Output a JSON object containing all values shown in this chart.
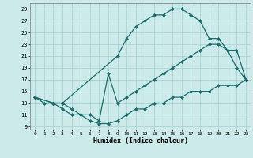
{
  "xlabel": "Humidex (Indice chaleur)",
  "bg_color": "#cceaea",
  "grid_color": "#aad4d4",
  "line_color": "#1a6b6b",
  "xlim": [
    -0.5,
    23.5
  ],
  "ylim": [
    8.5,
    30.0
  ],
  "xticks": [
    0,
    1,
    2,
    3,
    4,
    5,
    6,
    7,
    8,
    9,
    10,
    11,
    12,
    13,
    14,
    15,
    16,
    17,
    18,
    19,
    20,
    21,
    22,
    23
  ],
  "yticks": [
    9,
    11,
    13,
    15,
    17,
    19,
    21,
    23,
    25,
    27,
    29
  ],
  "line1_x": [
    0,
    1,
    2,
    3,
    9,
    10,
    11,
    12,
    13,
    14,
    15,
    16,
    17,
    18,
    19,
    20,
    21,
    22,
    23
  ],
  "line1_y": [
    14,
    13,
    13,
    13,
    21,
    24,
    26,
    27,
    28,
    28,
    29,
    29,
    28,
    27,
    24,
    24,
    22,
    19,
    17
  ],
  "line2_x": [
    0,
    2,
    3,
    4,
    5,
    6,
    7,
    8,
    9,
    10,
    11,
    12,
    13,
    14,
    15,
    16,
    17,
    18,
    19,
    20,
    21,
    22,
    23
  ],
  "line2_y": [
    14,
    13,
    13,
    12,
    11,
    11,
    10,
    18,
    13,
    14,
    15,
    16,
    17,
    18,
    19,
    20,
    21,
    22,
    23,
    23,
    22,
    22,
    17
  ],
  "line3_x": [
    0,
    2,
    3,
    4,
    5,
    6,
    7,
    8,
    9,
    10,
    11,
    12,
    13,
    14,
    15,
    16,
    17,
    18,
    19,
    20,
    21,
    22,
    23
  ],
  "line3_y": [
    14,
    13,
    12,
    11,
    11,
    10,
    9.5,
    9.5,
    10,
    11,
    12,
    12,
    13,
    13,
    14,
    14,
    15,
    15,
    15,
    16,
    16,
    16,
    17
  ]
}
